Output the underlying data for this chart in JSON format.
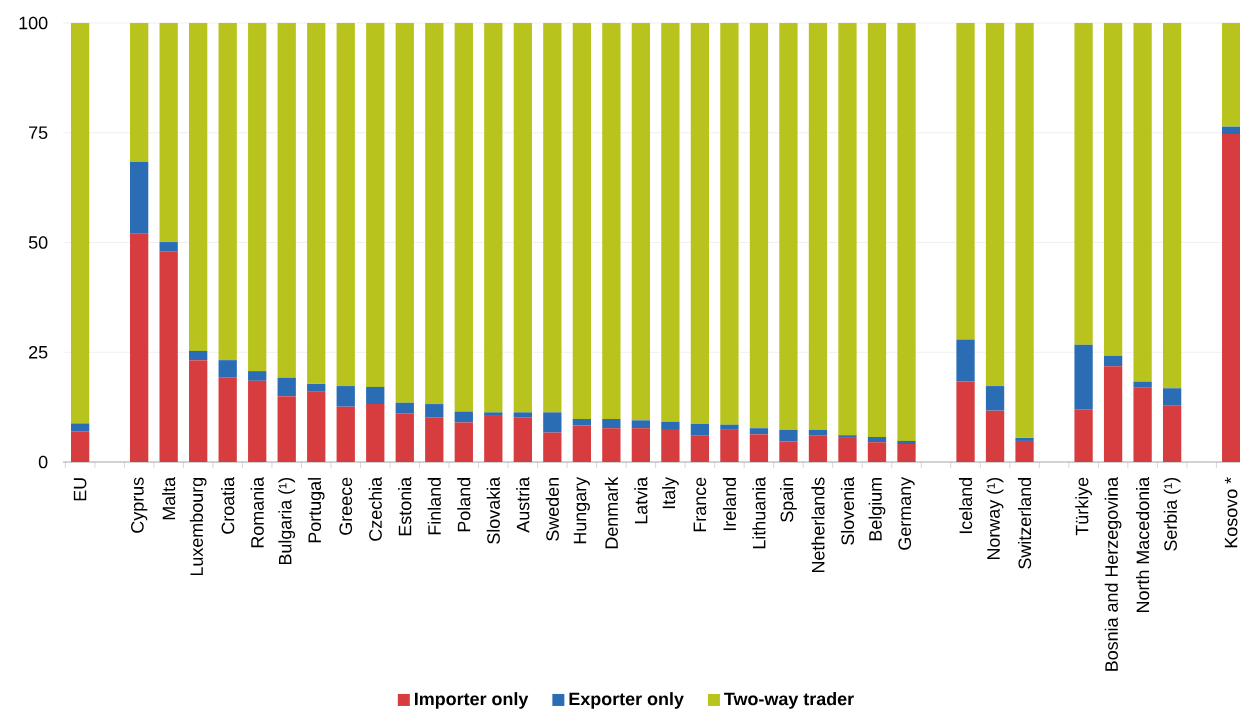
{
  "chart_data": {
    "type": "bar",
    "stacked": true,
    "grid": "y",
    "legend": "bottom",
    "categories": [
      "EU",
      null,
      "Cyprus",
      "Malta",
      "Luxembourg",
      "Croatia",
      "Romania",
      "Bulgaria (¹)",
      "Portugal",
      "Greece",
      "Czechia",
      "Estonia",
      "Finland",
      "Poland",
      "Slovakia",
      "Austria",
      "Sweden",
      "Hungary",
      "Denmark",
      "Latvia",
      "Italy",
      "France",
      "Ireland",
      "Lithuania",
      "Spain",
      "Netherlands",
      "Slovenia",
      "Belgium",
      "Germany",
      null,
      "Iceland",
      "Norway (¹)",
      "Switzerland",
      null,
      "Türkiye",
      "Bosnia and Herzegovina",
      "North Macedonia",
      "Serbia (¹)",
      null,
      "Kosovo *"
    ],
    "ylim": [
      0,
      100
    ],
    "yticks": [
      0,
      25,
      50,
      75,
      100
    ],
    "series": [
      {
        "name": "Importer only",
        "color": "#d73c3f",
        "values": [
          7,
          null,
          52,
          48,
          23.2,
          19.2,
          18.5,
          15,
          16,
          12.6,
          13.2,
          11.1,
          10.1,
          9,
          10.5,
          10.1,
          6.7,
          8.3,
          7.7,
          7.7,
          7.3,
          6.1,
          7.5,
          6.3,
          4.7,
          6.1,
          5.5,
          4.5,
          4.1,
          null,
          18.3,
          11.7,
          4.8,
          null,
          12,
          21.8,
          17,
          12.9,
          null,
          74.7
        ]
      },
      {
        "name": "Exporter only",
        "color": "#2a6db5",
        "values": [
          1.8,
          null,
          16.4,
          2.1,
          2.1,
          4,
          2.2,
          4.2,
          1.8,
          4.7,
          3.9,
          2.4,
          3.1,
          2.5,
          0.8,
          1.2,
          4.6,
          1.5,
          2.1,
          1.8,
          1.9,
          2.6,
          1,
          1.4,
          2.6,
          1.2,
          0.6,
          1.2,
          0.7,
          null,
          9.6,
          5.6,
          0.7,
          null,
          14.7,
          2.4,
          1.3,
          3.9,
          null,
          1.7
        ]
      },
      {
        "name": "Two-way trader",
        "color": "#b8c41d",
        "values": [
          91.2,
          null,
          31.6,
          49.9,
          74.7,
          76.8,
          79.3,
          80.8,
          82.2,
          82.7,
          82.9,
          86.5,
          86.8,
          88.5,
          88.7,
          88.7,
          88.7,
          90.2,
          90.2,
          90.5,
          90.8,
          91.3,
          91.5,
          92.3,
          92.7,
          92.7,
          93.9,
          94.3,
          95.2,
          null,
          72.1,
          82.7,
          94.5,
          null,
          73.3,
          75.8,
          81.7,
          83.2,
          null,
          23.6
        ]
      }
    ]
  }
}
